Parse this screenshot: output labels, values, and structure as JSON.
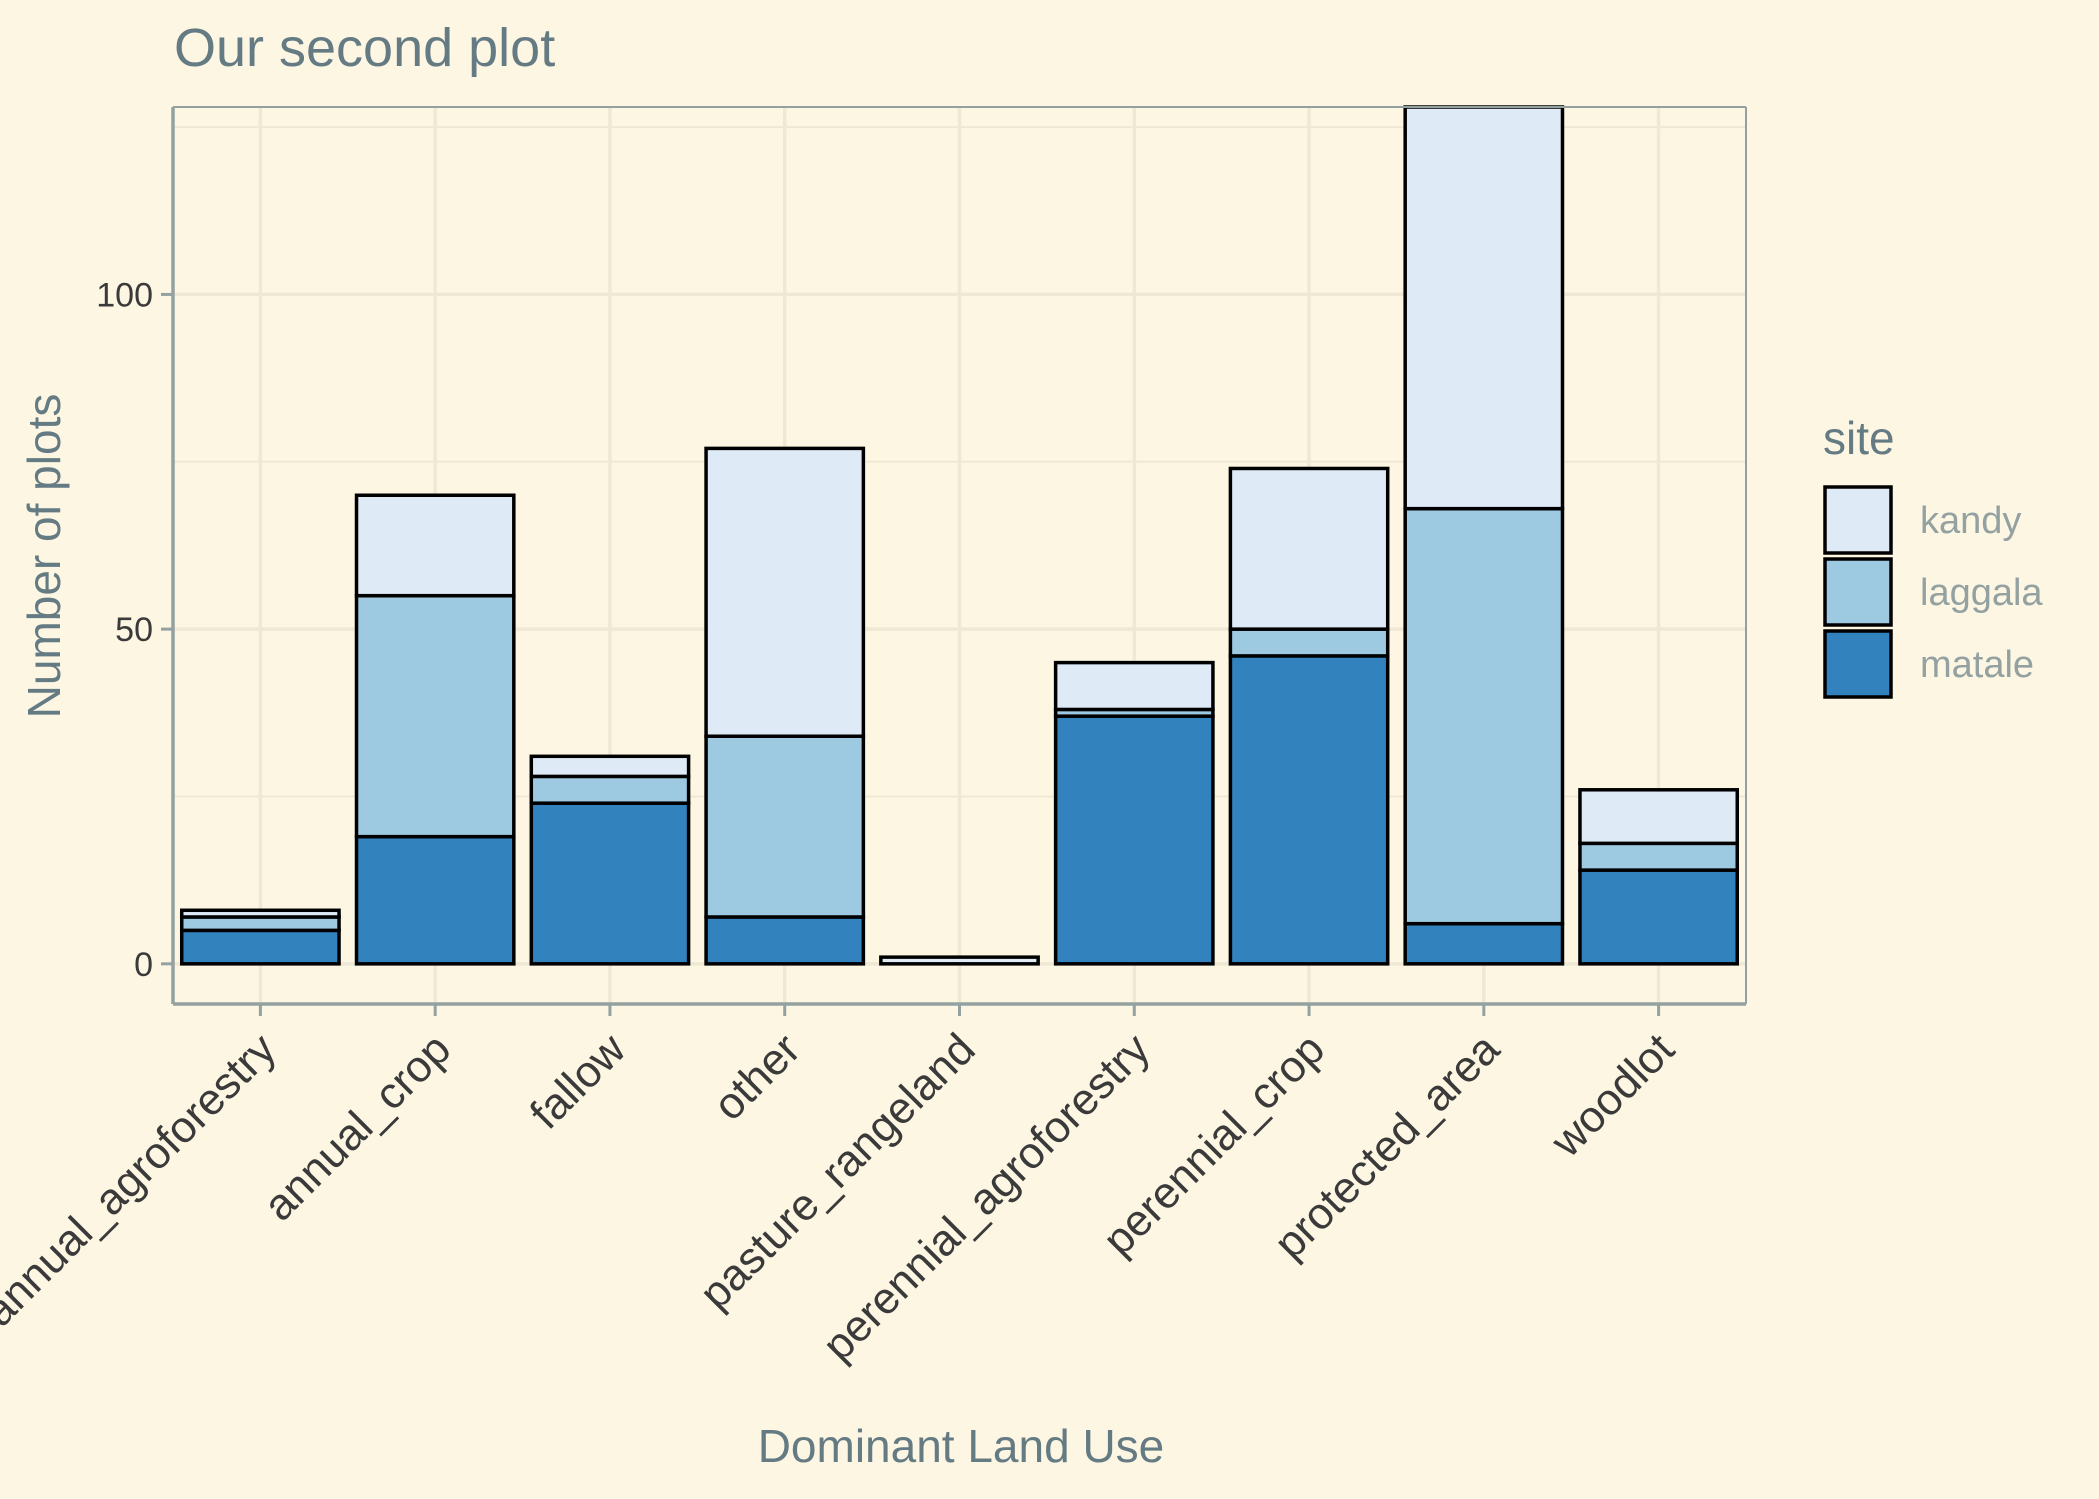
{
  "chart_data": {
    "type": "bar",
    "stacked": true,
    "title": "Our second plot",
    "xlabel": "Dominant Land Use",
    "ylabel": "Number of plots",
    "categories": [
      "annual_agroforestry",
      "annual_crop",
      "fallow",
      "other",
      "pasture_rangeland",
      "perennial_agroforestry",
      "perennial_crop",
      "protected_area",
      "woodlot"
    ],
    "series": [
      {
        "name": "matale",
        "color": "#3182bd",
        "values": [
          5,
          19,
          24,
          7,
          0,
          37,
          46,
          6,
          14
        ]
      },
      {
        "name": "laggala",
        "color": "#9ecae1",
        "values": [
          2,
          36,
          4,
          27,
          0,
          1,
          4,
          62,
          4
        ]
      },
      {
        "name": "kandy",
        "color": "#deebf7",
        "values": [
          1,
          15,
          3,
          43,
          1,
          7,
          24,
          60,
          8
        ]
      }
    ],
    "ylim": [
      -6,
      128
    ],
    "yticks": [
      0,
      50,
      100
    ],
    "grid": true,
    "legend": {
      "title": "site",
      "position": "right",
      "entries": [
        "kandy",
        "laggala",
        "matale"
      ]
    },
    "colors": {
      "background": "#fdf6e3",
      "grid": "#eee8d5",
      "axis_line": "#93a1a1",
      "title_text": "#657b83",
      "tick_text": "#3a3a3a",
      "legend_label": "#93a1a1",
      "bar_outline": "#000000"
    }
  }
}
